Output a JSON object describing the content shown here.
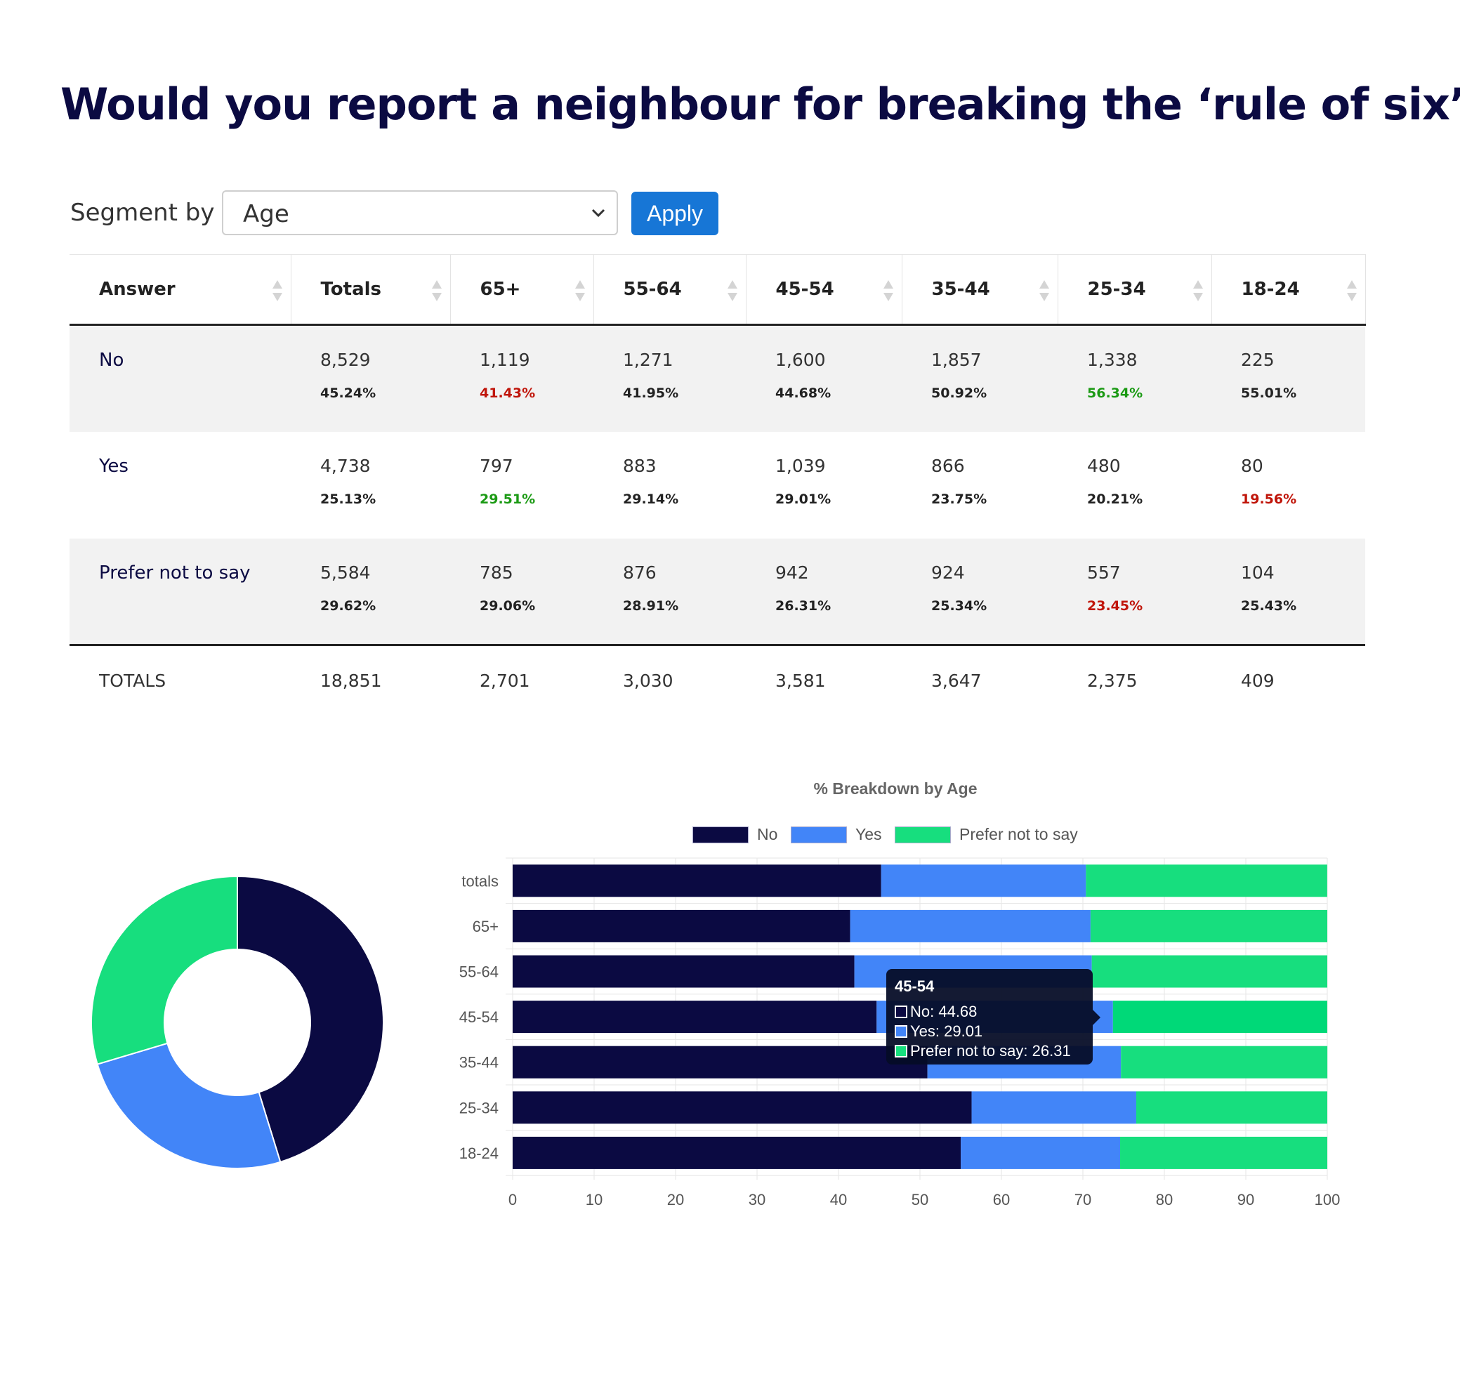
{
  "title": "Would you report a neighbour for breaking the ‘rule of six’?",
  "segment": {
    "label": "Segment by",
    "selected": "Age",
    "apply_label": "Apply"
  },
  "table": {
    "columns": [
      "Answer",
      "Totals",
      "65+",
      "55-64",
      "45-54",
      "35-44",
      "25-34",
      "18-24"
    ],
    "rows": [
      {
        "answer": "No",
        "counts": [
          "8,529",
          "1,119",
          "1,271",
          "1,600",
          "1,857",
          "1,338",
          "225"
        ],
        "pcts": [
          "45.24%",
          "41.43%",
          "41.95%",
          "44.68%",
          "50.92%",
          "56.34%",
          "55.01%"
        ]
      },
      {
        "answer": "Yes",
        "counts": [
          "4,738",
          "797",
          "883",
          "1,039",
          "866",
          "480",
          "80"
        ],
        "pcts": [
          "25.13%",
          "29.51%",
          "29.14%",
          "29.01%",
          "23.75%",
          "20.21%",
          "19.56%"
        ]
      },
      {
        "answer": "Prefer not to say",
        "counts": [
          "5,584",
          "785",
          "876",
          "942",
          "924",
          "557",
          "104"
        ],
        "pcts": [
          "29.62%",
          "29.06%",
          "28.91%",
          "26.31%",
          "25.34%",
          "23.45%",
          "25.43%"
        ]
      }
    ],
    "totals": [
      "TOTALS",
      "18,851",
      "2,701",
      "3,030",
      "3,581",
      "3,647",
      "2,375",
      "409"
    ]
  },
  "colors": {
    "no": "#0b0a42",
    "yes": "#4285f8",
    "prefer": "#17de7e",
    "low": "#c0150a",
    "high": "#1b9a14"
  },
  "chart_data": [
    {
      "type": "pie",
      "categories": [
        "No",
        "Yes",
        "Prefer not to say"
      ],
      "values": [
        45.24,
        25.13,
        29.62
      ]
    },
    {
      "type": "bar",
      "orientation": "horizontal",
      "stacked": true,
      "title": "% Breakdown  by Age",
      "legend": "top",
      "categories": [
        "totals",
        "65+",
        "55-64",
        "45-54",
        "35-44",
        "25-34",
        "18-24"
      ],
      "series": [
        {
          "name": "No",
          "values": [
            45.24,
            41.43,
            41.95,
            44.68,
            50.92,
            56.34,
            55.01
          ]
        },
        {
          "name": "Yes",
          "values": [
            25.13,
            29.51,
            29.14,
            29.01,
            23.75,
            20.21,
            19.56
          ]
        },
        {
          "name": "Prefer not to say",
          "values": [
            29.62,
            29.06,
            28.91,
            26.31,
            25.34,
            23.45,
            25.43
          ]
        }
      ],
      "xlim": [
        0,
        100
      ],
      "xticks": [
        0,
        10,
        20,
        30,
        40,
        50,
        60,
        70,
        80,
        90,
        100
      ],
      "grid": true,
      "tooltip": {
        "title": "45-54",
        "lines": [
          "No: 44.68",
          "Yes: 29.01",
          "Prefer not to say: 26.31"
        ],
        "active_category": "45-54"
      }
    }
  ]
}
